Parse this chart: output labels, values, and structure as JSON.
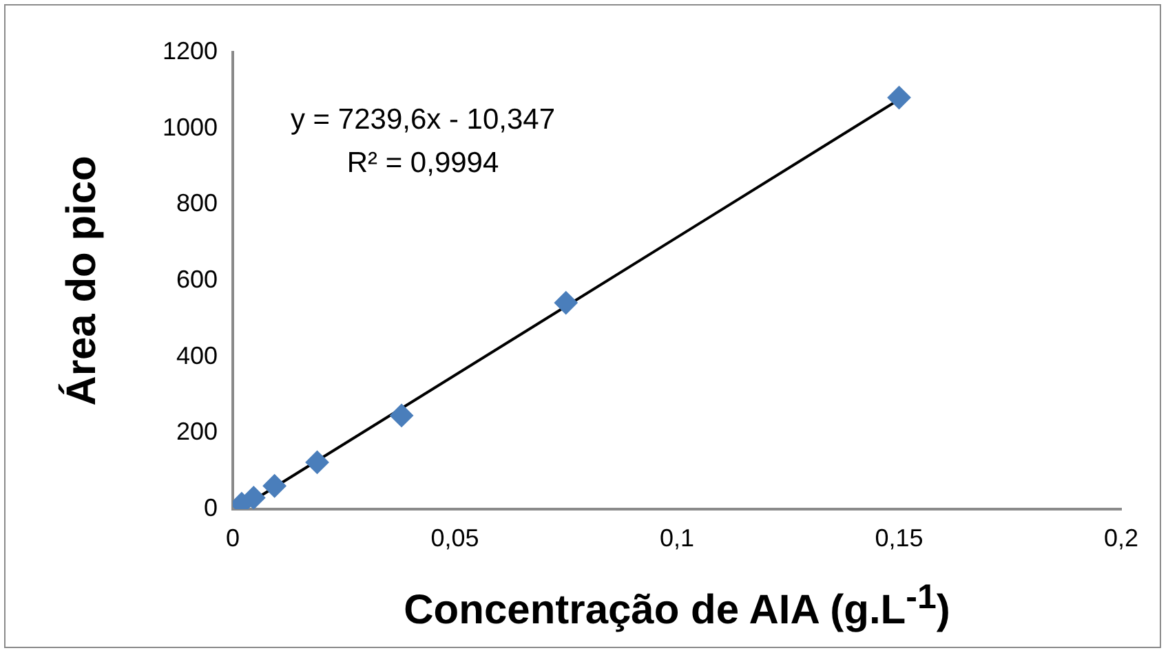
{
  "chart_data": {
    "type": "scatter",
    "xlabel": "Concentração de AIA (g.L$^{-1}$)",
    "ylabel": "Área do pico",
    "series": [
      {
        "color": "#4a7ebb",
        "marker": "diamond",
        "x": [
          0.002,
          0.0047,
          0.0094,
          0.019,
          0.038,
          0.075,
          0.15
        ],
        "values": [
          14,
          30,
          61,
          123,
          246,
          542,
          1081
        ]
      },
      {
        "type": "line",
        "marker": "none",
        "color": "#000000",
        "x": [
          0.002,
          0.15
        ],
        "values": [
          4,
          1076
        ]
      }
    ],
    "xlim": [
      0,
      0.2
    ],
    "xticks": [
      0,
      {
        "value": 0.05,
        "label": "0,05"
      },
      {
        "value": 0.1,
        "label": "0,1"
      },
      {
        "value": 0.15,
        "label": "0,15"
      },
      {
        "value": 0.2,
        "label": "0,2"
      }
    ],
    "ylim": [
      0,
      1200
    ],
    "yticks": [
      0,
      200,
      400,
      600,
      800,
      1000,
      1200
    ],
    "annotations": [
      "y = 7239,6x - 10,347",
      "R² = 0,9994"
    ],
    "grid": false,
    "legend": false
  }
}
